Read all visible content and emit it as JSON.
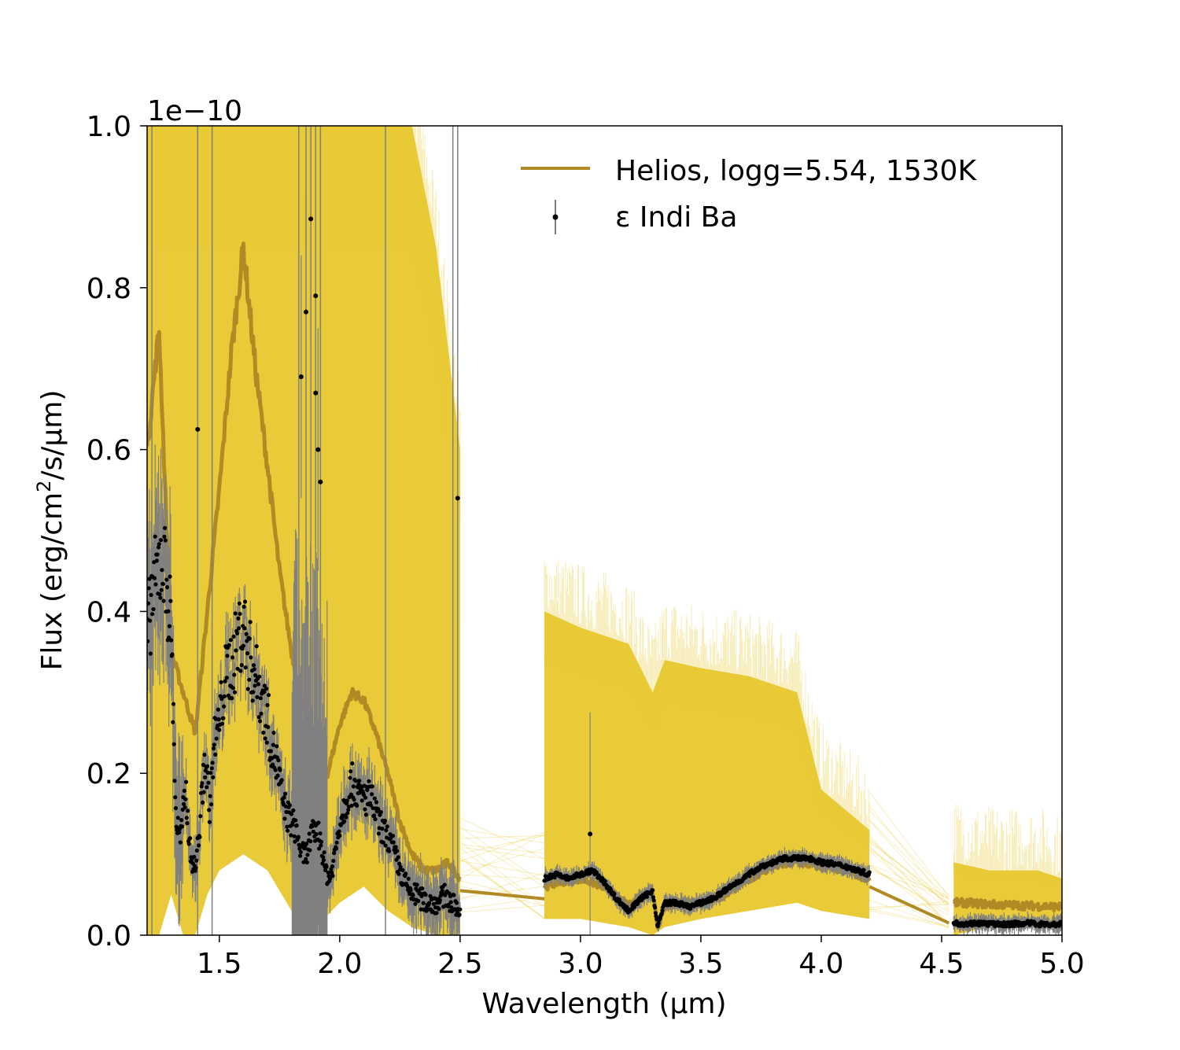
{
  "chart_data": {
    "type": "line",
    "xlabel": "Wavelength (µm)",
    "ylabel_main": "Flux (erg/cm",
    "ylabel_sup": "2",
    "ylabel_tail": "/s/µm)",
    "y_offset_text": "1e−10",
    "xlim": [
      1.2,
      5.0
    ],
    "ylim": [
      0.0,
      1.0
    ],
    "y_scale_factor": 1e-10,
    "x_ticks": [
      1.5,
      2.0,
      2.5,
      3.0,
      3.5,
      4.0,
      4.5,
      5.0
    ],
    "x_tick_labels": [
      "1.5",
      "2.0",
      "2.5",
      "3.0",
      "3.5",
      "4.0",
      "4.5",
      "5.0"
    ],
    "y_ticks": [
      0.0,
      0.2,
      0.4,
      0.6,
      0.8,
      1.0
    ],
    "y_tick_labels": [
      "0.0",
      "0.2",
      "0.4",
      "0.6",
      "0.8",
      "1.0"
    ],
    "grid": false,
    "legend_position": "top-right",
    "legend": [
      {
        "label": "Helios, logg=5.54, 1530K",
        "kind": "line"
      },
      {
        "label": "ε Indi Ba",
        "kind": "errorbar-point"
      }
    ],
    "colors": {
      "model_best": "#b08a24",
      "model_samples": "#e8c82e",
      "data_points": "#000000",
      "errorbars": "#808080"
    },
    "series": [
      {
        "name": "Helios, logg=5.54, 1530K",
        "role": "best-fit model",
        "segments": [
          {
            "x": [
              1.2,
              1.25,
              1.3,
              1.35,
              1.4,
              1.45,
              1.5,
              1.55,
              1.6,
              1.65,
              1.7,
              1.75,
              1.8,
              1.85,
              1.9,
              1.95,
              2.0,
              2.05,
              2.1,
              2.15,
              2.2,
              2.25,
              2.3,
              2.35,
              2.4,
              2.45,
              2.5
            ],
            "y": [
              0.6,
              0.75,
              0.35,
              0.3,
              0.25,
              0.4,
              0.55,
              0.72,
              0.85,
              0.7,
              0.58,
              0.45,
              0.35,
              0.28,
              0.22,
              0.2,
              0.26,
              0.3,
              0.29,
              0.25,
              0.2,
              0.14,
              0.1,
              0.08,
              0.08,
              0.09,
              0.07
            ]
          },
          {
            "x": [
              2.5,
              2.85
            ],
            "y": [
              0.055,
              0.045
            ]
          },
          {
            "x": [
              2.85,
              2.9,
              3.0,
              3.1,
              3.2,
              3.25,
              3.3,
              3.32,
              3.35,
              3.4,
              3.5,
              3.6,
              3.7,
              3.8,
              3.9,
              4.0,
              4.1,
              4.2
            ],
            "y": [
              0.06,
              0.065,
              0.07,
              0.06,
              0.035,
              0.05,
              0.055,
              0.01,
              0.035,
              0.04,
              0.04,
              0.05,
              0.07,
              0.085,
              0.09,
              0.085,
              0.08,
              0.07
            ]
          },
          {
            "x": [
              4.2,
              4.53
            ],
            "y": [
              0.06,
              0.015
            ]
          },
          {
            "x": [
              4.55,
              4.6,
              4.7,
              4.8,
              4.9,
              5.0
            ],
            "y": [
              0.04,
              0.04,
              0.038,
              0.037,
              0.036,
              0.035
            ]
          }
        ]
      },
      {
        "name": "model samples",
        "role": "posterior envelope",
        "envelope_x": [
          1.2,
          1.25,
          1.3,
          1.35,
          1.4,
          1.45,
          1.5,
          1.6,
          1.7,
          1.8,
          1.9,
          2.0,
          2.1,
          2.2,
          2.3,
          2.4,
          2.5
        ],
        "envelope_upper": [
          1.0,
          1.0,
          1.0,
          1.0,
          1.0,
          1.0,
          1.0,
          1.0,
          1.0,
          1.0,
          1.0,
          1.0,
          1.0,
          1.0,
          1.0,
          0.85,
          0.6
        ],
        "envelope_lower": [
          0.0,
          0.0,
          0.05,
          0.0,
          0.0,
          0.05,
          0.08,
          0.1,
          0.08,
          0.03,
          0.01,
          0.04,
          0.06,
          0.03,
          0.01,
          0.0,
          0.0
        ],
        "envelope_x2": [
          2.85,
          3.0,
          3.2,
          3.3,
          3.35,
          3.5,
          3.7,
          3.9,
          4.0,
          4.2
        ],
        "envelope_upper2": [
          0.4,
          0.38,
          0.36,
          0.3,
          0.34,
          0.33,
          0.32,
          0.3,
          0.18,
          0.13
        ],
        "envelope_lower2": [
          0.02,
          0.02,
          0.01,
          0.0,
          0.01,
          0.02,
          0.03,
          0.04,
          0.03,
          0.02
        ],
        "envelope_x3": [
          4.55,
          4.7,
          4.9,
          5.0
        ],
        "envelope_upper3": [
          0.09,
          0.08,
          0.08,
          0.07
        ],
        "envelope_lower3": [
          0.0,
          0.01,
          0.01,
          0.01
        ]
      },
      {
        "name": "ε Indi Ba",
        "role": "observed spectrum",
        "segments": [
          {
            "x": [
              1.2,
              1.22,
              1.24,
              1.26,
              1.28,
              1.3,
              1.32,
              1.34,
              1.36,
              1.38,
              1.4,
              1.42,
              1.44,
              1.46,
              1.48,
              1.5,
              1.52,
              1.54,
              1.56,
              1.58,
              1.6,
              1.62,
              1.64,
              1.66,
              1.68,
              1.7,
              1.72,
              1.74,
              1.76,
              1.78,
              1.8,
              1.82,
              1.84,
              1.86,
              1.88,
              1.9,
              1.92,
              1.94,
              1.96,
              1.98,
              2.0,
              2.02,
              2.04,
              2.06,
              2.08,
              2.1,
              2.12,
              2.14,
              2.16,
              2.18,
              2.2,
              2.22,
              2.24,
              2.26,
              2.28,
              2.3,
              2.32,
              2.34,
              2.36,
              2.38,
              2.4,
              2.42,
              2.44,
              2.46,
              2.48,
              2.5
            ],
            "y": [
              0.36,
              0.42,
              0.44,
              0.47,
              0.44,
              0.38,
              0.14,
              0.12,
              0.18,
              0.1,
              0.08,
              0.14,
              0.22,
              0.16,
              0.24,
              0.26,
              0.31,
              0.33,
              0.34,
              0.37,
              0.38,
              0.35,
              0.33,
              0.31,
              0.29,
              0.27,
              0.23,
              0.21,
              0.17,
              0.15,
              0.14,
              0.13,
              0.1,
              0.1,
              0.12,
              0.13,
              0.12,
              0.08,
              0.07,
              0.1,
              0.14,
              0.16,
              0.18,
              0.19,
              0.17,
              0.17,
              0.17,
              0.16,
              0.14,
              0.13,
              0.12,
              0.11,
              0.09,
              0.07,
              0.06,
              0.05,
              0.05,
              0.045,
              0.04,
              0.04,
              0.04,
              0.045,
              0.05,
              0.04,
              0.035,
              0.03
            ]
          },
          {
            "x": [
              2.85,
              2.9,
              2.95,
              3.0,
              3.05,
              3.1,
              3.15,
              3.2,
              3.25,
              3.3,
              3.32,
              3.35,
              3.4,
              3.45,
              3.5,
              3.55,
              3.6,
              3.65,
              3.7,
              3.75,
              3.8,
              3.85,
              3.9,
              3.95,
              4.0,
              4.05,
              4.1,
              4.15,
              4.2
            ],
            "y": [
              0.07,
              0.075,
              0.07,
              0.075,
              0.08,
              0.065,
              0.045,
              0.03,
              0.045,
              0.055,
              0.01,
              0.04,
              0.04,
              0.035,
              0.04,
              0.045,
              0.055,
              0.065,
              0.075,
              0.085,
              0.09,
              0.095,
              0.095,
              0.095,
              0.09,
              0.088,
              0.085,
              0.08,
              0.075
            ]
          },
          {
            "x": [
              4.55,
              4.6,
              4.65,
              4.7,
              4.75,
              4.8,
              4.85,
              4.9,
              4.95,
              5.0
            ],
            "y": [
              0.015,
              0.014,
              0.015,
              0.014,
              0.013,
              0.014,
              0.015,
              0.014,
              0.013,
              0.014
            ]
          }
        ],
        "outliers": [
          {
            "x": 1.41,
            "y": 0.625
          },
          {
            "x": 1.84,
            "y": 0.69
          },
          {
            "x": 1.86,
            "y": 0.77
          },
          {
            "x": 1.88,
            "y": 0.885
          },
          {
            "x": 1.9,
            "y": 0.79
          },
          {
            "x": 1.9,
            "y": 0.67
          },
          {
            "x": 1.92,
            "y": 0.56
          },
          {
            "x": 1.91,
            "y": 0.6
          },
          {
            "x": 2.49,
            "y": 0.54
          },
          {
            "x": 3.04,
            "y": 0.125
          }
        ]
      }
    ]
  }
}
